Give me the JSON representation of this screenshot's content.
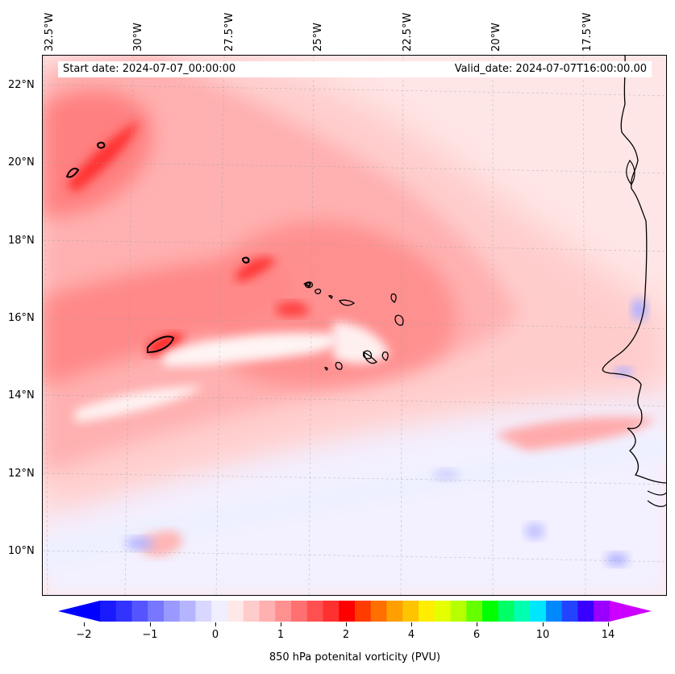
{
  "header": {
    "start_date": "Start date: 2024-07-07_00:00:00",
    "valid_date": "Valid_date: 2024-07-07T16:00:00.00"
  },
  "axes": {
    "lon_labels": [
      "32.5°W",
      "30°W",
      "27.5°W",
      "25°W",
      "22.5°W",
      "20°W",
      "17.5°W"
    ],
    "lat_labels": [
      "22°N",
      "20°N",
      "18°N",
      "16°N",
      "14°N",
      "12°N",
      "10°N"
    ]
  },
  "colorbar": {
    "title": "850 hPa potenital vorticity (PVU)",
    "tick_labels": [
      "−2",
      "−1",
      "0",
      "1",
      "2",
      "4",
      "6",
      "10",
      "14"
    ],
    "colors": [
      "#1a1aff",
      "#3333ff",
      "#5555ff",
      "#7777ff",
      "#9999ff",
      "#b5b5ff",
      "#d7d7ff",
      "#efefff",
      "#ffe8e8",
      "#ffcccc",
      "#ffb0b0",
      "#ff9090",
      "#ff7070",
      "#ff5050",
      "#ff3030",
      "#ff0000",
      "#ff3c00",
      "#ff7000",
      "#ffa000",
      "#ffc400",
      "#ffee00",
      "#e6ff00",
      "#b6ff00",
      "#66ff00",
      "#00ff00",
      "#00ff66",
      "#00ffb0",
      "#00e6ff",
      "#0088ff",
      "#2244ff",
      "#3a00ff",
      "#9900ff"
    ],
    "extend_low_color": "#0000ff",
    "extend_high_color": "#cc00ff"
  }
}
